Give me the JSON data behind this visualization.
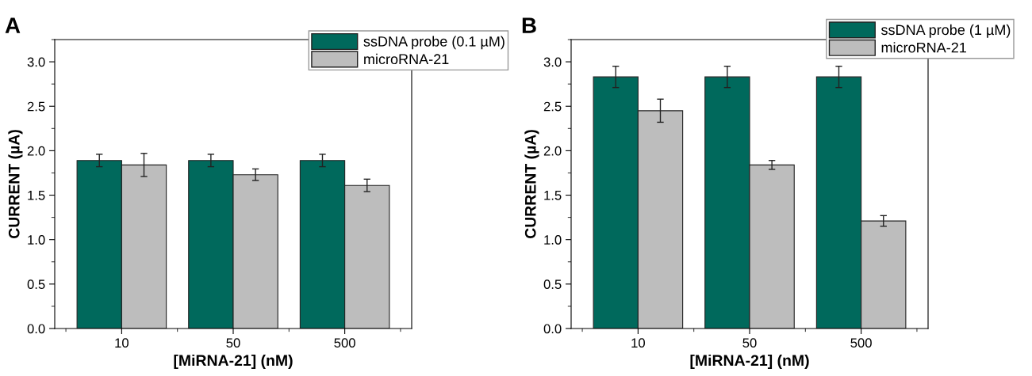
{
  "chart_data": [
    {
      "type": "bar",
      "title": "A",
      "xlabel": "[MiRNA-21] (nM)",
      "ylabel": "CURRENT (µA)",
      "categories": [
        "10",
        "50",
        "500"
      ],
      "ylim": [
        0,
        3.25
      ],
      "yticks": [
        {
          "value": 0,
          "label": "0.0"
        },
        0.5,
        {
          "value": 1,
          "label": "1.0"
        },
        1.5,
        {
          "value": 2,
          "label": "2.0"
        },
        2.5,
        {
          "value": 3,
          "label": "3.0"
        }
      ],
      "legend": "top right",
      "grid": false,
      "series": [
        {
          "name": "ssDNA probe (0.1 µM)",
          "color": "#00695c",
          "values": [
            1.89,
            1.89,
            1.89
          ],
          "errors": [
            0.07,
            0.07,
            0.07
          ]
        },
        {
          "name": "microRNA-21",
          "color": "#bdbdbd",
          "values": [
            1.84,
            1.73,
            1.61
          ],
          "errors": [
            0.13,
            0.065,
            0.07
          ]
        }
      ]
    },
    {
      "type": "bar",
      "title": "B",
      "xlabel": "[MiRNA-21] (nM)",
      "ylabel": "CURRENT (µA)",
      "categories": [
        "10",
        "50",
        "500"
      ],
      "ylim": [
        0,
        3.25
      ],
      "yticks": [
        {
          "value": 0,
          "label": "0.0"
        },
        0.5,
        {
          "value": 1,
          "label": "1.0"
        },
        1.5,
        {
          "value": 2,
          "label": "2.0"
        },
        2.5,
        {
          "value": 3,
          "label": "3.0"
        }
      ],
      "legend": "top right",
      "grid": false,
      "series": [
        {
          "name": "ssDNA probe (1 µM)",
          "color": "#00695c",
          "values": [
            2.83,
            2.83,
            2.83
          ],
          "errors": [
            0.12,
            0.12,
            0.12
          ]
        },
        {
          "name": "microRNA-21",
          "color": "#bdbdbd",
          "values": [
            2.45,
            1.84,
            1.21
          ],
          "errors": [
            0.13,
            0.05,
            0.06
          ]
        }
      ]
    }
  ]
}
